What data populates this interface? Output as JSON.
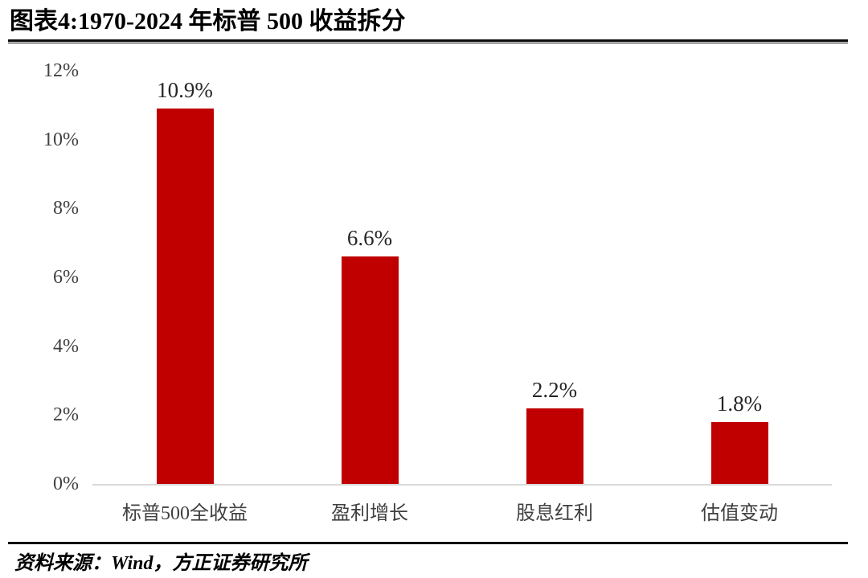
{
  "header": {
    "title": "图表4:1970-2024 年标普 500 收益拆分"
  },
  "chart_data": {
    "type": "bar",
    "title": "图表4:1970-2024 年标普 500 收益拆分",
    "categories": [
      "标普500全收益",
      "盈利增长",
      "股息红利",
      "估值变动"
    ],
    "values": [
      10.9,
      6.6,
      2.2,
      1.8
    ],
    "value_labels": [
      "10.9%",
      "6.6%",
      "2.2%",
      "1.8%"
    ],
    "xlabel": "",
    "ylabel": "",
    "ylim": [
      0,
      12
    ],
    "ytick_step": 2,
    "ytick_labels": [
      "0%",
      "2%",
      "4%",
      "6%",
      "8%",
      "10%",
      "12%"
    ],
    "grid": false,
    "legend": false
  },
  "colors": {
    "bar": "#c00000",
    "axis_line": "#d9d9d9",
    "axis_text": "#404040",
    "value_text": "#262626",
    "rule": "#0d0d0d"
  },
  "footer": {
    "source": "资料来源：Wind，方正证券研究所"
  }
}
